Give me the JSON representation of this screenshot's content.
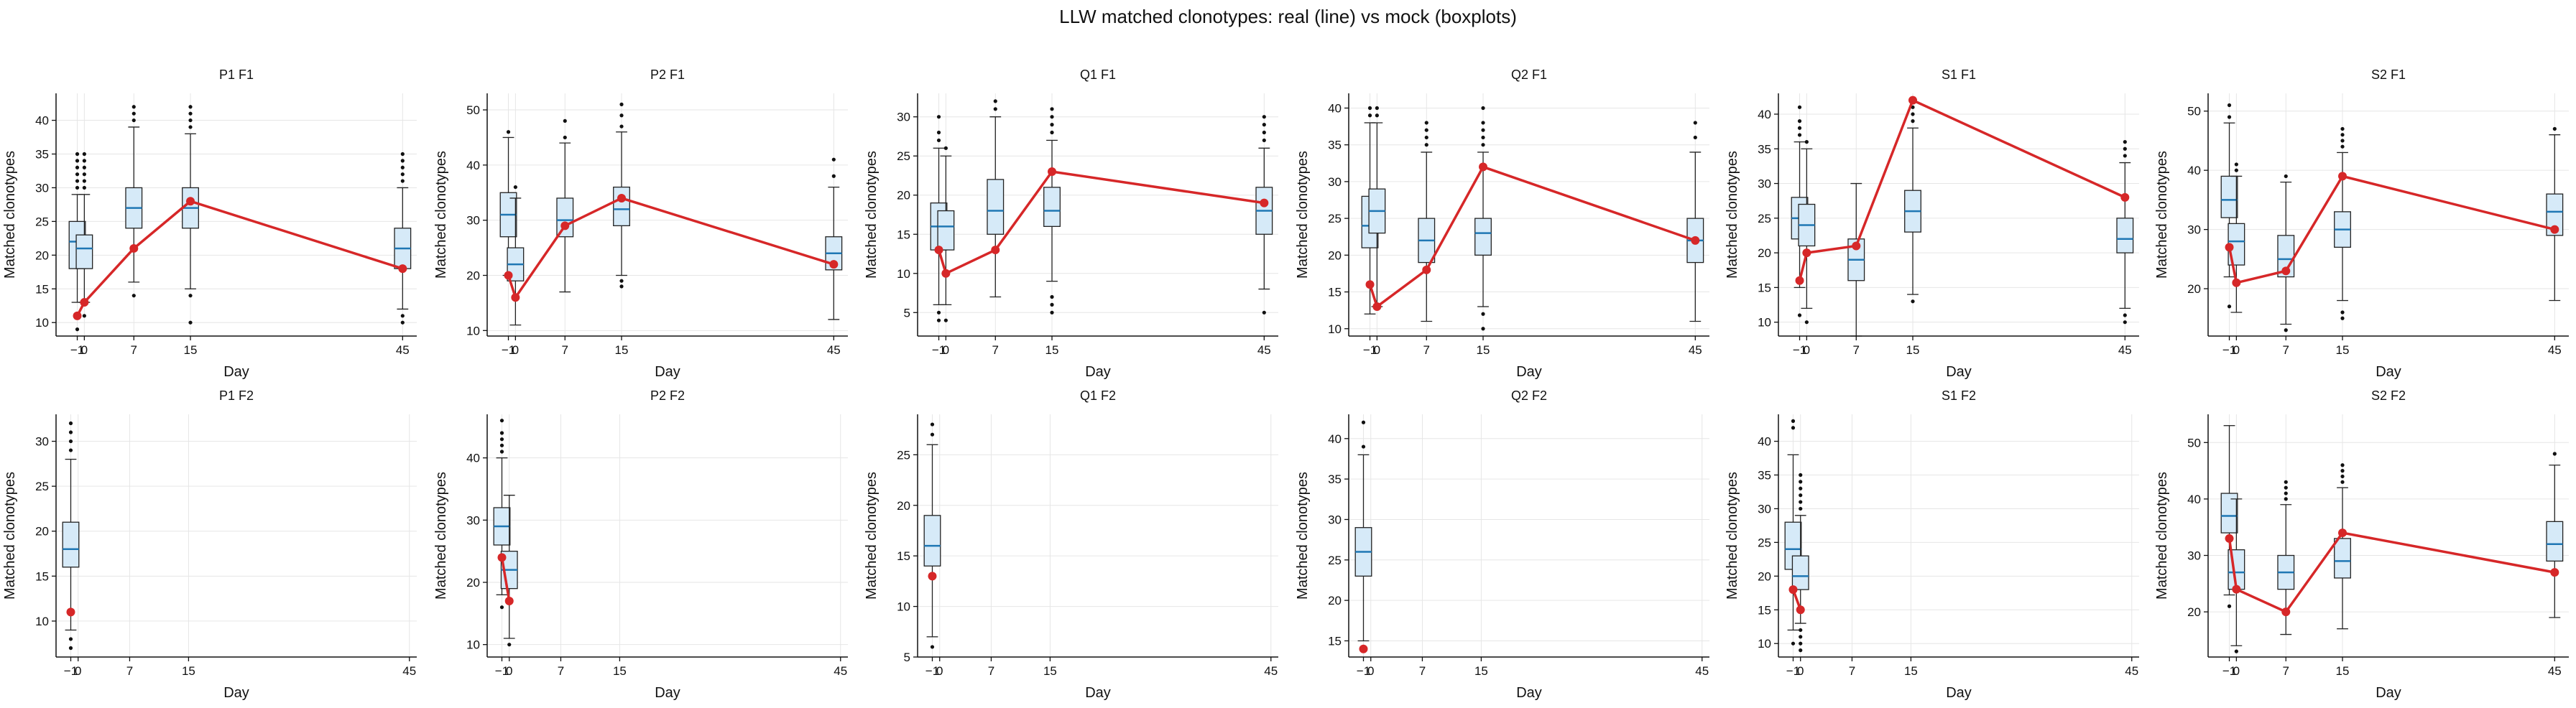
{
  "title": "LLW matched clonotypes: real (line) vs mock (boxplots)",
  "colors": {
    "real_line": "#d62728",
    "box_fill": "#d6eaf8",
    "box_edge": "#222222",
    "median": "#1f77b4",
    "grid": "#e6e6e6"
  },
  "chart_data": [
    {
      "type": "box+line",
      "title": "P1 F1",
      "xlabel": "Day",
      "ylabel": "Matched clonotypes",
      "xlim": [
        -4,
        47
      ],
      "ylim": [
        8,
        44
      ],
      "yticks": [
        10,
        15,
        20,
        25,
        30,
        35,
        40
      ],
      "xticks": [
        -1,
        0,
        7,
        15,
        45
      ],
      "grid": true,
      "boxes": [
        {
          "x": -1,
          "whislo": 13,
          "q1": 18,
          "med": 22,
          "q3": 25,
          "whishi": 29,
          "fliers": [
            9,
            11,
            30,
            31,
            32,
            33,
            34,
            35
          ]
        },
        {
          "x": 0,
          "whislo": 13,
          "q1": 18,
          "med": 21,
          "q3": 23,
          "whishi": 29,
          "fliers": [
            11,
            30,
            31,
            32,
            33,
            34,
            35
          ]
        },
        {
          "x": 7,
          "whislo": 16,
          "q1": 24,
          "med": 27,
          "q3": 30,
          "whishi": 39,
          "fliers": [
            14,
            40,
            41,
            42
          ]
        },
        {
          "x": 15,
          "whislo": 15,
          "q1": 24,
          "med": 27,
          "q3": 30,
          "whishi": 38,
          "fliers": [
            10,
            14,
            39,
            40,
            41,
            42
          ]
        },
        {
          "x": 45,
          "whislo": 12,
          "q1": 18,
          "med": 21,
          "q3": 24,
          "whishi": 30,
          "fliers": [
            10,
            11,
            31,
            32,
            33,
            34,
            35
          ]
        }
      ],
      "real": {
        "x": [
          -1,
          0,
          7,
          15,
          45
        ],
        "y": [
          11,
          13,
          21,
          28,
          18
        ]
      }
    },
    {
      "type": "box+line",
      "title": "P2 F1",
      "xlabel": "Day",
      "ylabel": "Matched clonotypes",
      "xlim": [
        -4,
        47
      ],
      "ylim": [
        9,
        53
      ],
      "yticks": [
        10,
        20,
        30,
        40,
        50
      ],
      "xticks": [
        -1,
        0,
        7,
        15,
        45
      ],
      "grid": true,
      "boxes": [
        {
          "x": -1,
          "whislo": 20,
          "q1": 27,
          "med": 31,
          "q3": 35,
          "whishi": 45,
          "fliers": [
            46
          ]
        },
        {
          "x": 0,
          "whislo": 11,
          "q1": 19,
          "med": 22,
          "q3": 25,
          "whishi": 34,
          "fliers": [
            36
          ]
        },
        {
          "x": 7,
          "whislo": 17,
          "q1": 27,
          "med": 30,
          "q3": 34,
          "whishi": 44,
          "fliers": [
            45,
            48
          ]
        },
        {
          "x": 15,
          "whislo": 20,
          "q1": 29,
          "med": 32,
          "q3": 36,
          "whishi": 46,
          "fliers": [
            18,
            19,
            47,
            49,
            51
          ]
        },
        {
          "x": 45,
          "whislo": 12,
          "q1": 21,
          "med": 24,
          "q3": 27,
          "whishi": 36,
          "fliers": [
            38,
            41
          ]
        }
      ],
      "real": {
        "x": [
          -1,
          0,
          7,
          15,
          45
        ],
        "y": [
          20,
          16,
          29,
          34,
          22
        ]
      }
    },
    {
      "type": "box+line",
      "title": "Q1 F1",
      "xlabel": "Day",
      "ylabel": "Matched clonotypes",
      "xlim": [
        -4,
        47
      ],
      "ylim": [
        2,
        33
      ],
      "yticks": [
        5,
        10,
        15,
        20,
        25,
        30
      ],
      "xticks": [
        -1,
        0,
        7,
        15,
        45
      ],
      "grid": true,
      "boxes": [
        {
          "x": -1,
          "whislo": 6,
          "q1": 13,
          "med": 16,
          "q3": 19,
          "whishi": 26,
          "fliers": [
            4,
            5,
            27,
            28,
            30
          ]
        },
        {
          "x": 0,
          "whislo": 6,
          "q1": 13,
          "med": 16,
          "q3": 18,
          "whishi": 25,
          "fliers": [
            4,
            26
          ]
        },
        {
          "x": 7,
          "whislo": 7,
          "q1": 15,
          "med": 18,
          "q3": 22,
          "whishi": 30,
          "fliers": [
            31,
            32
          ]
        },
        {
          "x": 15,
          "whislo": 9,
          "q1": 16,
          "med": 18,
          "q3": 21,
          "whishi": 27,
          "fliers": [
            5,
            6,
            7,
            28,
            29,
            30,
            31
          ]
        },
        {
          "x": 45,
          "whislo": 8,
          "q1": 15,
          "med": 18,
          "q3": 21,
          "whishi": 26,
          "fliers": [
            5,
            27,
            28,
            29,
            30
          ]
        }
      ],
      "real": {
        "x": [
          -1,
          0,
          7,
          15,
          45
        ],
        "y": [
          13,
          10,
          13,
          23,
          19
        ]
      }
    },
    {
      "type": "box+line",
      "title": "Q2 F1",
      "xlabel": "Day",
      "ylabel": "Matched clonotypes",
      "xlim": [
        -4,
        47
      ],
      "ylim": [
        9,
        42
      ],
      "yticks": [
        10,
        15,
        20,
        25,
        30,
        35,
        40
      ],
      "xticks": [
        -1,
        0,
        7,
        15,
        45
      ],
      "grid": true,
      "boxes": [
        {
          "x": -1,
          "whislo": 12,
          "q1": 21,
          "med": 24,
          "q3": 28,
          "whishi": 38,
          "fliers": [
            39,
            40
          ]
        },
        {
          "x": 0,
          "whislo": 13,
          "q1": 23,
          "med": 26,
          "q3": 29,
          "whishi": 38,
          "fliers": [
            39,
            40
          ]
        },
        {
          "x": 7,
          "whislo": 11,
          "q1": 19,
          "med": 22,
          "q3": 25,
          "whishi": 34,
          "fliers": [
            35,
            36,
            37,
            38
          ]
        },
        {
          "x": 15,
          "whislo": 13,
          "q1": 20,
          "med": 23,
          "q3": 25,
          "whishi": 34,
          "fliers": [
            10,
            12,
            35,
            36,
            37,
            38,
            40
          ]
        },
        {
          "x": 45,
          "whislo": 11,
          "q1": 19,
          "med": 22,
          "q3": 25,
          "whishi": 34,
          "fliers": [
            36,
            38
          ]
        }
      ],
      "real": {
        "x": [
          -1,
          0,
          7,
          15,
          45
        ],
        "y": [
          16,
          13,
          18,
          32,
          22
        ]
      }
    },
    {
      "type": "box+line",
      "title": "S1 F1",
      "xlabel": "Day",
      "ylabel": "Matched clonotypes",
      "xlim": [
        -4,
        47
      ],
      "ylim": [
        8,
        43
      ],
      "yticks": [
        10,
        15,
        20,
        25,
        30,
        35,
        40
      ],
      "xticks": [
        -1,
        0,
        7,
        15,
        45
      ],
      "grid": true,
      "boxes": [
        {
          "x": -1,
          "whislo": 15,
          "q1": 22,
          "med": 25,
          "q3": 28,
          "whishi": 36,
          "fliers": [
            11,
            37,
            38,
            39,
            41
          ]
        },
        {
          "x": 0,
          "whislo": 12,
          "q1": 21,
          "med": 24,
          "q3": 27,
          "whishi": 35,
          "fliers": [
            10,
            36
          ]
        },
        {
          "x": 7,
          "whislo": 8,
          "q1": 16,
          "med": 19,
          "q3": 22,
          "whishi": 30,
          "fliers": []
        },
        {
          "x": 15,
          "whislo": 14,
          "q1": 23,
          "med": 26,
          "q3": 29,
          "whishi": 38,
          "fliers": [
            13,
            39,
            40,
            41
          ]
        },
        {
          "x": 45,
          "whislo": 12,
          "q1": 20,
          "med": 22,
          "q3": 25,
          "whishi": 33,
          "fliers": [
            10,
            11,
            34,
            35,
            36
          ]
        }
      ],
      "real": {
        "x": [
          -1,
          0,
          7,
          15,
          45
        ],
        "y": [
          16,
          20,
          21,
          42,
          28
        ]
      }
    },
    {
      "type": "box+line",
      "title": "S2 F1",
      "xlabel": "Day",
      "ylabel": "Matched clonotypes",
      "xlim": [
        -4,
        47
      ],
      "ylim": [
        12,
        53
      ],
      "yticks": [
        20,
        30,
        40,
        50
      ],
      "xticks": [
        -1,
        0,
        7,
        15,
        45
      ],
      "grid": true,
      "boxes": [
        {
          "x": -1,
          "whislo": 22,
          "q1": 32,
          "med": 35,
          "q3": 39,
          "whishi": 48,
          "fliers": [
            17,
            49,
            51
          ]
        },
        {
          "x": 0,
          "whislo": 16,
          "q1": 24,
          "med": 28,
          "q3": 31,
          "whishi": 39,
          "fliers": [
            40,
            41
          ]
        },
        {
          "x": 7,
          "whislo": 14,
          "q1": 22,
          "med": 25,
          "q3": 29,
          "whishi": 38,
          "fliers": [
            13,
            39
          ]
        },
        {
          "x": 15,
          "whislo": 18,
          "q1": 27,
          "med": 30,
          "q3": 33,
          "whishi": 43,
          "fliers": [
            15,
            16,
            44,
            45,
            46,
            47
          ]
        },
        {
          "x": 45,
          "whislo": 18,
          "q1": 29,
          "med": 33,
          "q3": 36,
          "whishi": 46,
          "fliers": [
            47
          ]
        }
      ],
      "real": {
        "x": [
          -1,
          0,
          7,
          15,
          45
        ],
        "y": [
          27,
          21,
          23,
          39,
          30
        ]
      }
    },
    {
      "type": "box+line",
      "title": "P1 F2",
      "xlabel": "Day",
      "ylabel": "Matched clonotypes",
      "xlim": [
        -3,
        46
      ],
      "ylim": [
        6,
        33
      ],
      "yticks": [
        10,
        15,
        20,
        25,
        30
      ],
      "xticks": [
        -1,
        0,
        7,
        15,
        45
      ],
      "grid": true,
      "boxes": [
        {
          "x": -1,
          "whislo": 9,
          "q1": 16,
          "med": 18,
          "q3": 21,
          "whishi": 28,
          "fliers": [
            7,
            8,
            29,
            30,
            31,
            32
          ]
        }
      ],
      "real": {
        "x": [
          -1
        ],
        "y": [
          11
        ]
      }
    },
    {
      "type": "box+line",
      "title": "P2 F2",
      "xlabel": "Day",
      "ylabel": "Matched clonotypes",
      "xlim": [
        -3,
        46
      ],
      "ylim": [
        8,
        47
      ],
      "yticks": [
        10,
        20,
        30,
        40
      ],
      "xticks": [
        -1,
        0,
        7,
        15,
        45
      ],
      "grid": true,
      "boxes": [
        {
          "x": -1,
          "whislo": 18,
          "q1": 26,
          "med": 29,
          "q3": 32,
          "whishi": 40,
          "fliers": [
            16,
            41,
            42,
            43,
            44,
            46
          ]
        },
        {
          "x": 0,
          "whislo": 11,
          "q1": 19,
          "med": 22,
          "q3": 25,
          "whishi": 34,
          "fliers": [
            10
          ]
        }
      ],
      "real": {
        "x": [
          -1,
          0
        ],
        "y": [
          24,
          17
        ]
      }
    },
    {
      "type": "box+line",
      "title": "Q1 F2",
      "xlabel": "Day",
      "ylabel": "Matched clonotypes",
      "xlim": [
        -3,
        46
      ],
      "ylim": [
        5,
        29
      ],
      "yticks": [
        5,
        10,
        15,
        20,
        25
      ],
      "xticks": [
        -1,
        0,
        7,
        15,
        45
      ],
      "grid": true,
      "boxes": [
        {
          "x": -1,
          "whislo": 7,
          "q1": 14,
          "med": 16,
          "q3": 19,
          "whishi": 26,
          "fliers": [
            6,
            27,
            28
          ]
        }
      ],
      "real": {
        "x": [
          -1
        ],
        "y": [
          13
        ]
      }
    },
    {
      "type": "box+line",
      "title": "Q2 F2",
      "xlabel": "Day",
      "ylabel": "Matched clonotypes",
      "xlim": [
        -3,
        46
      ],
      "ylim": [
        13,
        43
      ],
      "yticks": [
        15,
        20,
        25,
        30,
        35,
        40
      ],
      "xticks": [
        -1,
        0,
        7,
        15,
        45
      ],
      "grid": true,
      "boxes": [
        {
          "x": -1,
          "whislo": 15,
          "q1": 23,
          "med": 26,
          "q3": 29,
          "whishi": 38,
          "fliers": [
            39,
            42
          ]
        }
      ],
      "real": {
        "x": [
          -1
        ],
        "y": [
          14
        ]
      }
    },
    {
      "type": "box+line",
      "title": "S1 F2",
      "xlabel": "Day",
      "ylabel": "Matched clonotypes",
      "xlim": [
        -3,
        46
      ],
      "ylim": [
        8,
        44
      ],
      "yticks": [
        10,
        15,
        20,
        25,
        30,
        35,
        40
      ],
      "xticks": [
        -1,
        0,
        7,
        15,
        45
      ],
      "grid": true,
      "boxes": [
        {
          "x": -1,
          "whislo": 12,
          "q1": 21,
          "med": 24,
          "q3": 28,
          "whishi": 38,
          "fliers": [
            10,
            42,
            43
          ]
        },
        {
          "x": 0,
          "whislo": 13,
          "q1": 18,
          "med": 20,
          "q3": 23,
          "whishi": 29,
          "fliers": [
            9,
            10,
            11,
            12,
            30,
            31,
            32,
            33,
            34,
            35
          ]
        }
      ],
      "real": {
        "x": [
          -1,
          0
        ],
        "y": [
          18,
          15
        ]
      }
    },
    {
      "type": "box+line",
      "title": "S2 F2",
      "xlabel": "Day",
      "ylabel": "Matched clonotypes",
      "xlim": [
        -4,
        47
      ],
      "ylim": [
        12,
        55
      ],
      "yticks": [
        20,
        30,
        40,
        50
      ],
      "xticks": [
        -1,
        0,
        7,
        15,
        45
      ],
      "grid": true,
      "boxes": [
        {
          "x": -1,
          "whislo": 23,
          "q1": 34,
          "med": 37,
          "q3": 41,
          "whishi": 53,
          "fliers": [
            21
          ]
        },
        {
          "x": 0,
          "whislo": 14,
          "q1": 24,
          "med": 27,
          "q3": 31,
          "whishi": 40,
          "fliers": [
            13
          ]
        },
        {
          "x": 7,
          "whislo": 16,
          "q1": 24,
          "med": 27,
          "q3": 30,
          "whishi": 39,
          "fliers": [
            40,
            41,
            42,
            43
          ]
        },
        {
          "x": 15,
          "whislo": 17,
          "q1": 26,
          "med": 29,
          "q3": 33,
          "whishi": 42,
          "fliers": [
            43,
            44,
            45,
            46
          ]
        },
        {
          "x": 45,
          "whislo": 19,
          "q1": 29,
          "med": 32,
          "q3": 36,
          "whishi": 46,
          "fliers": [
            48
          ]
        }
      ],
      "real": {
        "x": [
          -1,
          0,
          7,
          15,
          45
        ],
        "y": [
          33,
          24,
          20,
          34,
          27
        ]
      }
    }
  ]
}
